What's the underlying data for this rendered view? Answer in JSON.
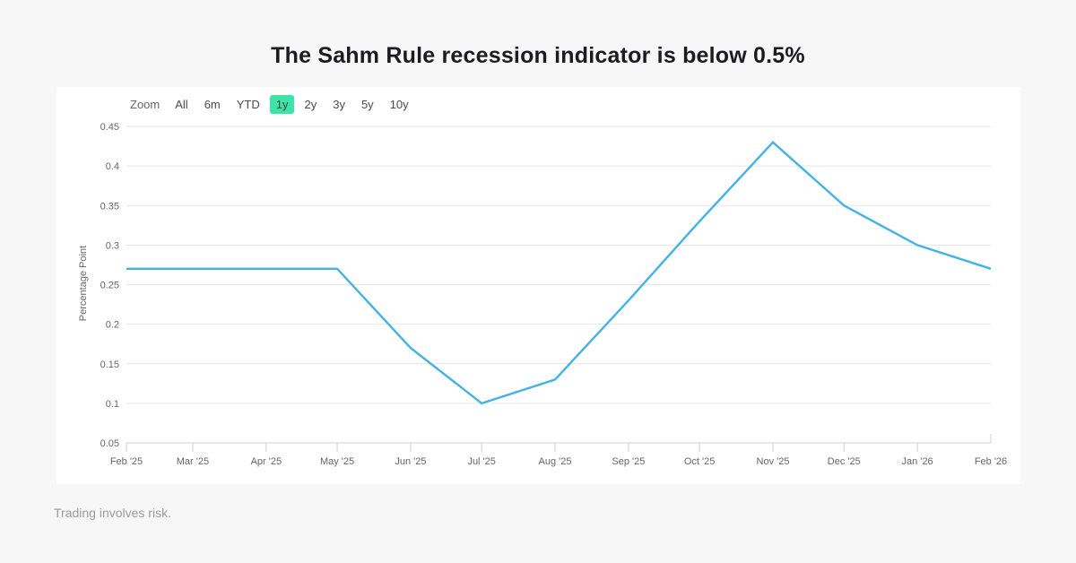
{
  "page": {
    "title": "The Sahm Rule recession indicator is below 0.5%",
    "footer": "Trading involves risk."
  },
  "range_selector": {
    "zoom_label": "Zoom",
    "buttons": [
      {
        "label": "All",
        "selected": false
      },
      {
        "label": "6m",
        "selected": false
      },
      {
        "label": "YTD",
        "selected": false
      },
      {
        "label": "1y",
        "selected": true
      },
      {
        "label": "2y",
        "selected": false
      },
      {
        "label": "3y",
        "selected": false
      },
      {
        "label": "5y",
        "selected": false
      },
      {
        "label": "10y",
        "selected": false
      }
    ],
    "selected_bg_color": "#3fe2a9"
  },
  "chart_data": {
    "type": "line",
    "title": "",
    "xlabel": "",
    "ylabel": "Percentage Point",
    "categories": [
      "Feb '25",
      "Mar '25",
      "Apr '25",
      "May '25",
      "Jun '25",
      "Jul '25",
      "Aug '25",
      "Sep '25",
      "Oct '25",
      "Nov '25",
      "Dec '25",
      "Jan '26",
      "Feb '26"
    ],
    "x_day_offsets": [
      0,
      28,
      59,
      89,
      120,
      150,
      181,
      212,
      242,
      273,
      303,
      334,
      365
    ],
    "series": [
      {
        "name": "Sahm Rule recession indicator",
        "values": [
          0.27,
          0.27,
          0.27,
          0.27,
          0.17,
          0.1,
          0.13,
          0.23,
          0.33,
          0.43,
          0.35,
          0.3,
          0.27
        ]
      }
    ],
    "yticks": [
      0.05,
      0.1,
      0.15,
      0.2,
      0.25,
      0.3,
      0.35,
      0.4,
      0.45
    ],
    "ylim": [
      0.05,
      0.45
    ],
    "grid": true,
    "legend": "none",
    "line_color": "#44b2e4",
    "grid_color": "#e6e6e6",
    "axis_color": "#ccd0d6"
  }
}
